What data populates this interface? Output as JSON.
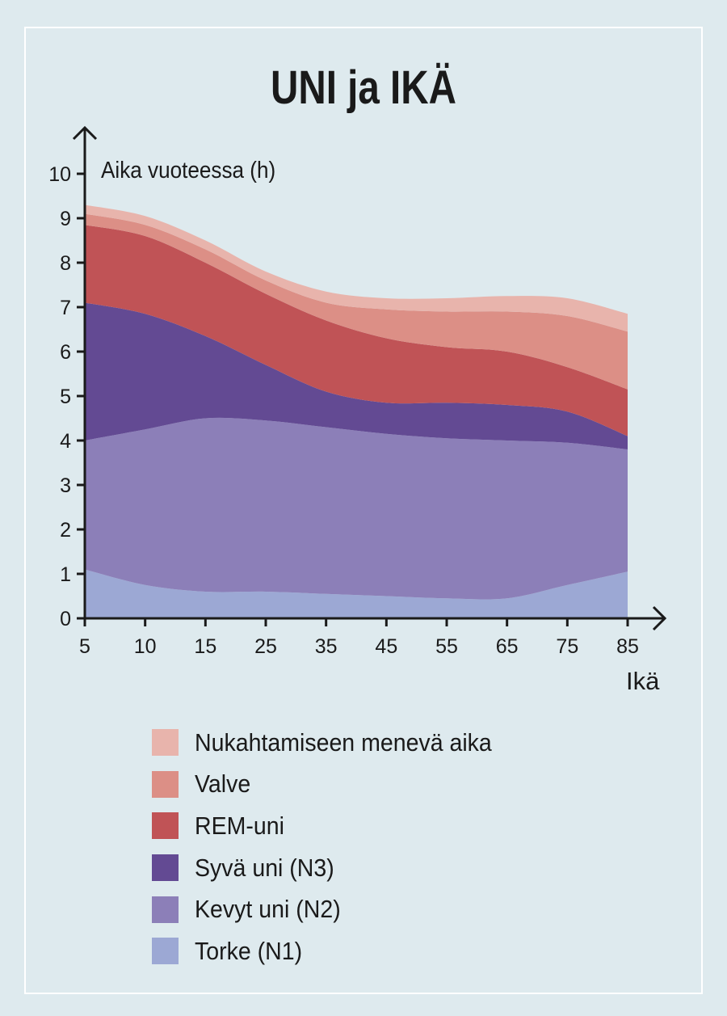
{
  "chart_data": {
    "type": "area",
    "stacked": true,
    "title": "UNI ja IKÄ",
    "ylabel": "Aika vuoteessa (h)",
    "xlabel": "Ikä",
    "x": [
      5,
      10,
      15,
      25,
      35,
      45,
      55,
      65,
      75,
      85
    ],
    "x_tick_labels": [
      "5",
      "10",
      "15",
      "25",
      "35",
      "45",
      "55",
      "65",
      "75",
      "85"
    ],
    "y_ticks": [
      0,
      1,
      2,
      3,
      4,
      5,
      6,
      7,
      8,
      9,
      10
    ],
    "ylim": [
      0,
      10
    ],
    "grid": false,
    "legend_placement": "bottom",
    "series": [
      {
        "name": "Torke (N1)",
        "color": "#9ca8d4",
        "values": [
          1.1,
          0.75,
          0.6,
          0.6,
          0.55,
          0.5,
          0.45,
          0.45,
          0.75,
          1.05
        ]
      },
      {
        "name": "Kevyt uni (N2)",
        "color": "#8c7fb8",
        "values": [
          2.9,
          3.5,
          3.9,
          3.85,
          3.75,
          3.65,
          3.6,
          3.55,
          3.2,
          2.75
        ]
      },
      {
        "name": "Syvä uni (N3)",
        "color": "#634a93",
        "values": [
          3.1,
          2.6,
          1.85,
          1.25,
          0.8,
          0.7,
          0.8,
          0.8,
          0.7,
          0.3
        ]
      },
      {
        "name": "REM-uni",
        "color": "#c05356",
        "values": [
          1.75,
          1.75,
          1.65,
          1.6,
          1.6,
          1.45,
          1.25,
          1.2,
          1.0,
          1.05
        ]
      },
      {
        "name": "Valve",
        "color": "#dc8f86",
        "values": [
          0.25,
          0.25,
          0.3,
          0.3,
          0.4,
          0.65,
          0.8,
          0.9,
          1.15,
          1.3
        ]
      },
      {
        "name": "Nukahtamiseen menevä aika",
        "color": "#e8b4ac",
        "values": [
          0.2,
          0.2,
          0.2,
          0.2,
          0.25,
          0.25,
          0.3,
          0.35,
          0.4,
          0.4
        ]
      }
    ],
    "legend_order": [
      5,
      4,
      3,
      2,
      1,
      0
    ]
  }
}
